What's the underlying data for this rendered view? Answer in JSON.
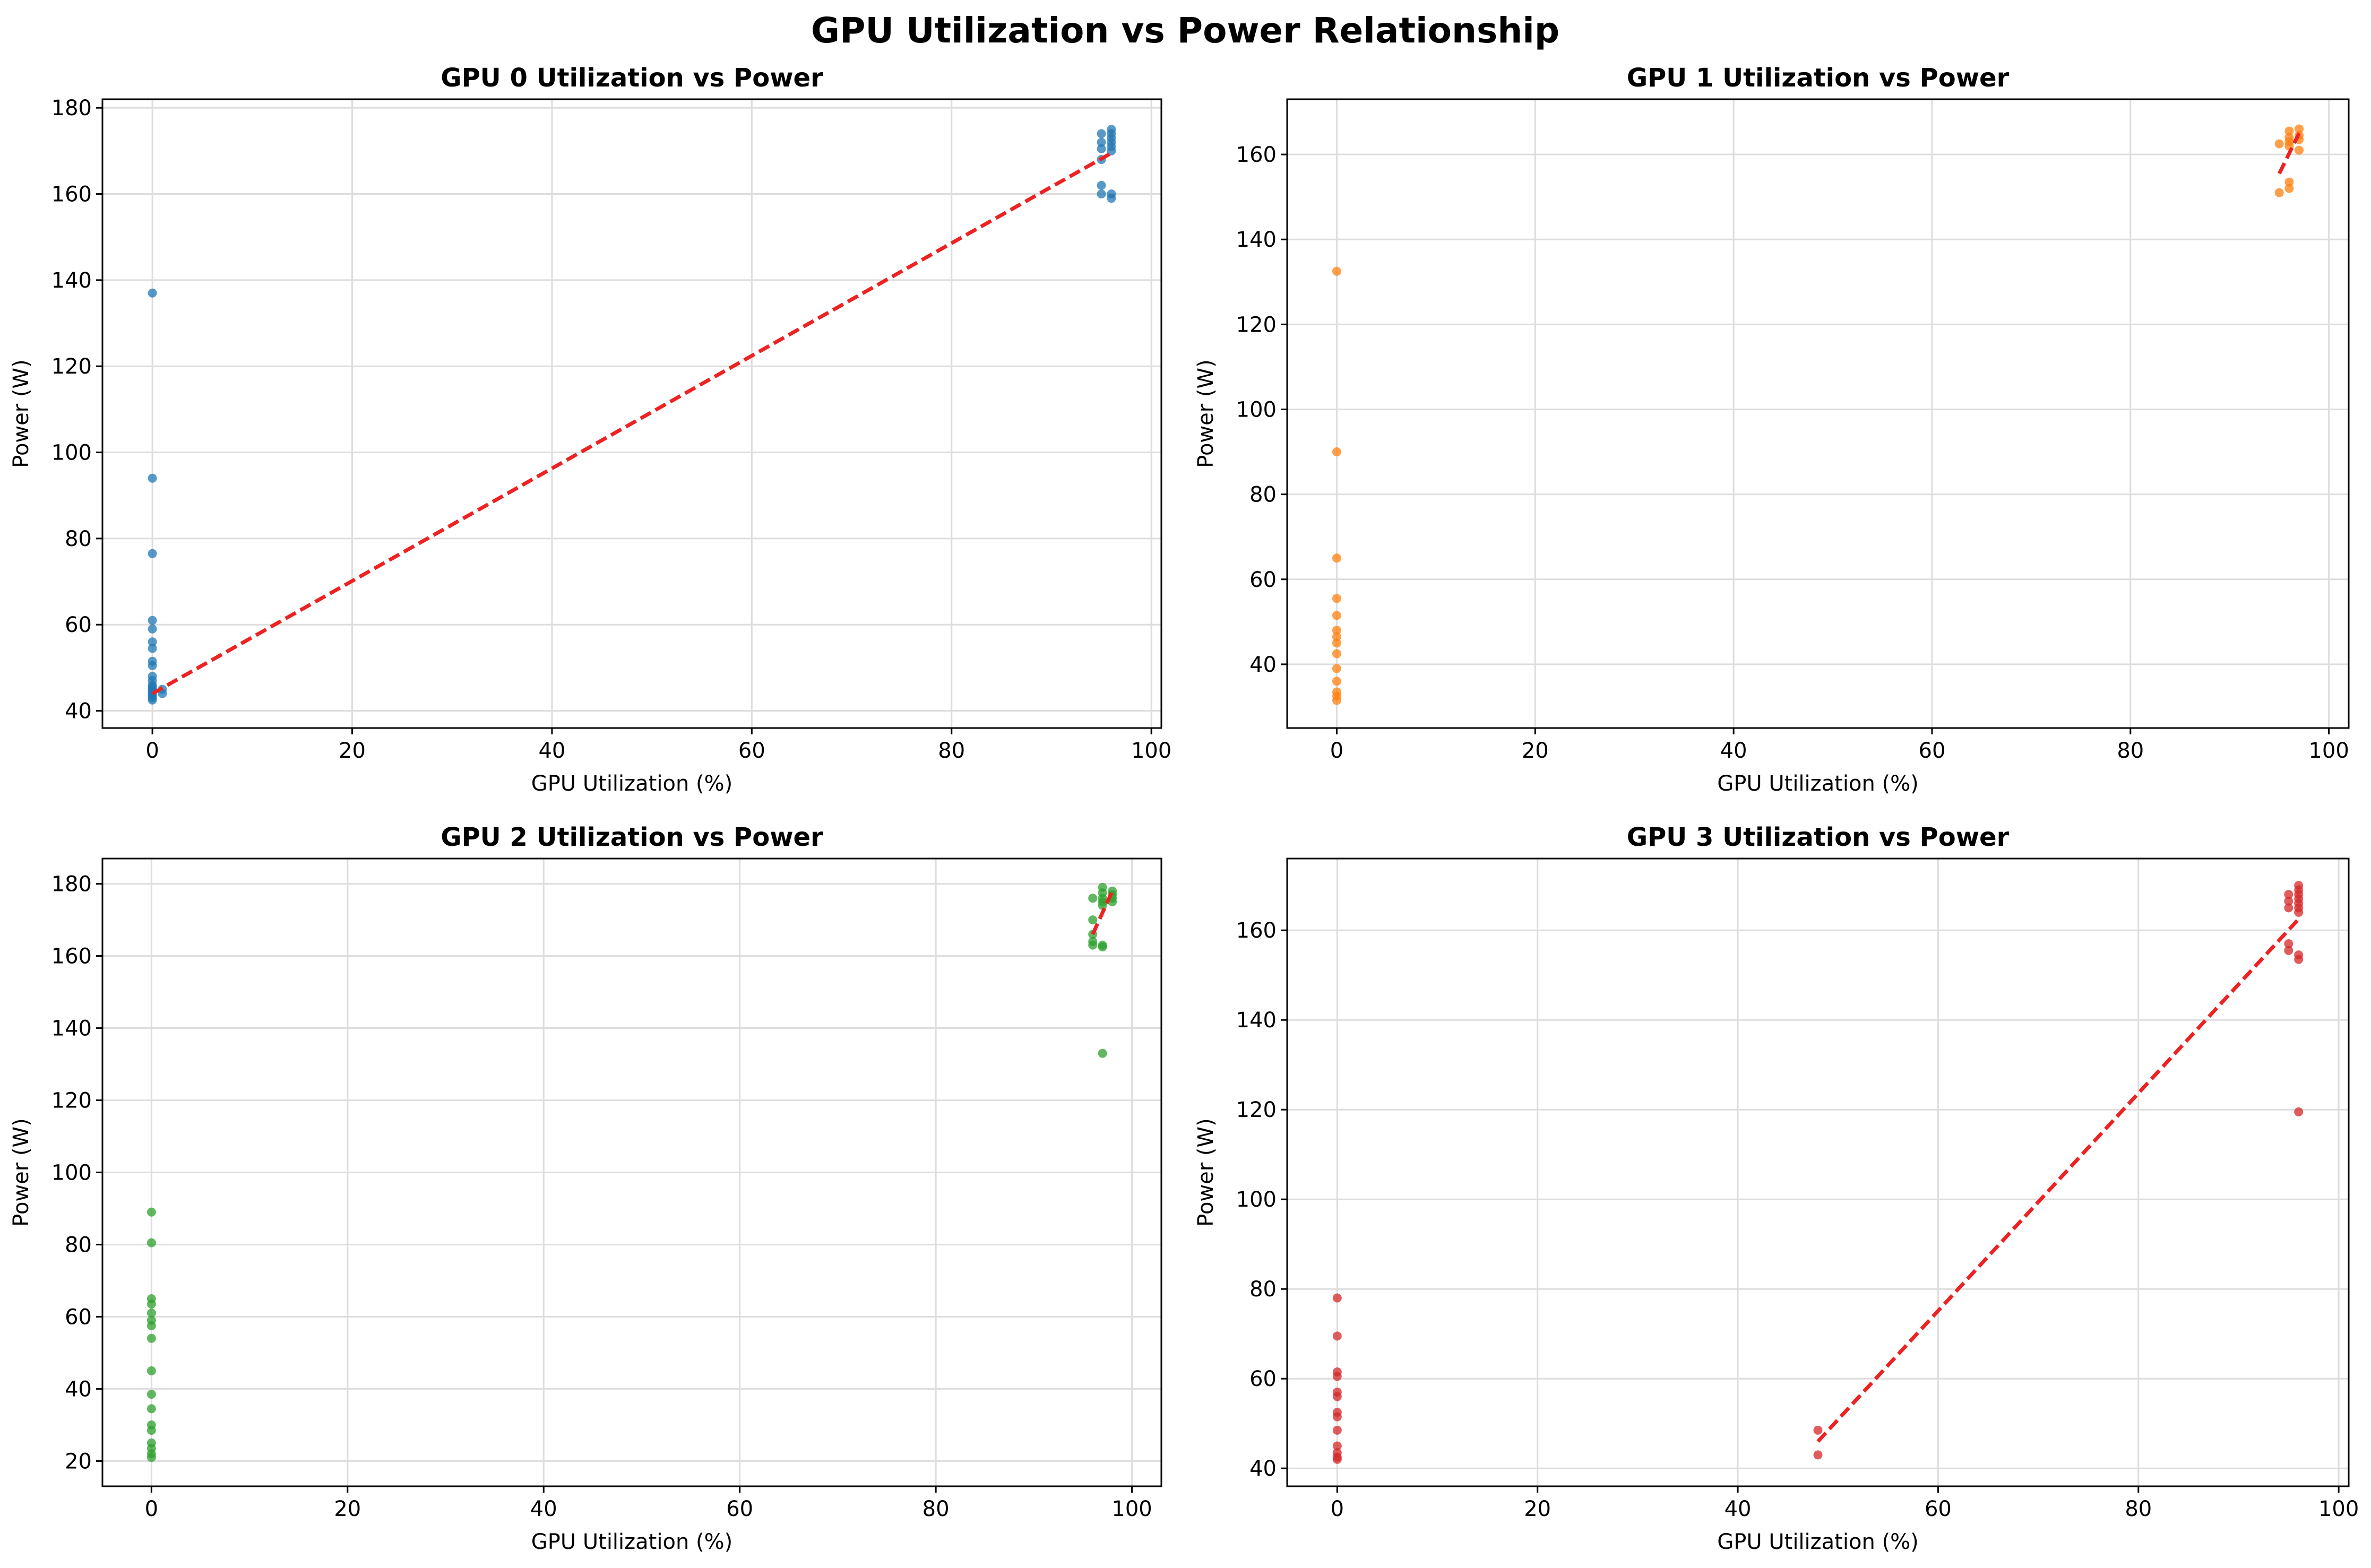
{
  "figure": {
    "title": "GPU Utilization vs Power Relationship"
  },
  "colors": {
    "gpu0": "#1f77b4",
    "gpu1": "#ff7f0e",
    "gpu2": "#2ca02c",
    "gpu3": "#d62728",
    "trend": "#ee2222",
    "grid": "#dddddd"
  },
  "chart_data": [
    {
      "type": "scatter",
      "title": "GPU 0 Utilization vs Power",
      "xlabel": "GPU Utilization (%)",
      "ylabel": "Power (W)",
      "xlim": [
        -5,
        101
      ],
      "ylim": [
        36,
        182
      ],
      "xticks": [
        0,
        20,
        40,
        60,
        80,
        100
      ],
      "yticks": [
        40,
        60,
        80,
        100,
        120,
        140,
        160,
        180
      ],
      "grid": true,
      "color_key": "gpu0",
      "points": [
        [
          0,
          137
        ],
        [
          0,
          94
        ],
        [
          0,
          76.5
        ],
        [
          0,
          61
        ],
        [
          0,
          59
        ],
        [
          0,
          56
        ],
        [
          0,
          54.5
        ],
        [
          0,
          51.5
        ],
        [
          0,
          50.5
        ],
        [
          0,
          48
        ],
        [
          0,
          47
        ],
        [
          0,
          46
        ],
        [
          0,
          45.5
        ],
        [
          0,
          45
        ],
        [
          0,
          44.5
        ],
        [
          0,
          44
        ],
        [
          0,
          43.5
        ],
        [
          0,
          43
        ],
        [
          0,
          42.5
        ],
        [
          1,
          45
        ],
        [
          1,
          44
        ],
        [
          95,
          174
        ],
        [
          95,
          172
        ],
        [
          95,
          170.5
        ],
        [
          95,
          168
        ],
        [
          95,
          162
        ],
        [
          95,
          160
        ],
        [
          96,
          175
        ],
        [
          96,
          174
        ],
        [
          96,
          173
        ],
        [
          96,
          172
        ],
        [
          96,
          171
        ],
        [
          96,
          170
        ],
        [
          96,
          160
        ],
        [
          96,
          159
        ]
      ],
      "trend": [
        [
          0,
          44
        ],
        [
          96,
          169.5
        ]
      ]
    },
    {
      "type": "scatter",
      "title": "GPU 1 Utilization vs Power",
      "xlabel": "GPU Utilization (%)",
      "ylabel": "Power (W)",
      "xlim": [
        -5,
        102
      ],
      "ylim": [
        25,
        173
      ],
      "xticks": [
        0,
        20,
        40,
        60,
        80,
        100
      ],
      "yticks": [
        40,
        60,
        80,
        100,
        120,
        140,
        160
      ],
      "grid": true,
      "color_key": "gpu1",
      "points": [
        [
          0,
          132.5
        ],
        [
          0,
          90
        ],
        [
          0,
          65
        ],
        [
          0,
          55.5
        ],
        [
          0,
          51.5
        ],
        [
          0,
          48
        ],
        [
          0,
          46.5
        ],
        [
          0,
          45
        ],
        [
          0,
          42.5
        ],
        [
          0,
          39
        ],
        [
          0,
          36
        ],
        [
          0,
          33.5
        ],
        [
          0,
          32.5
        ],
        [
          0,
          31.5
        ],
        [
          95,
          162.5
        ],
        [
          95,
          151
        ],
        [
          96,
          165.5
        ],
        [
          96,
          164
        ],
        [
          96,
          163
        ],
        [
          96,
          162
        ],
        [
          96,
          153.5
        ],
        [
          96,
          152
        ],
        [
          97,
          166
        ],
        [
          97,
          164.5
        ],
        [
          97,
          163.5
        ],
        [
          97,
          161
        ]
      ],
      "trend": [
        [
          95,
          155.5
        ],
        [
          97,
          165
        ]
      ]
    },
    {
      "type": "scatter",
      "title": "GPU 2 Utilization vs Power",
      "xlabel": "GPU Utilization (%)",
      "ylabel": "Power (W)",
      "xlim": [
        -5,
        103
      ],
      "ylim": [
        13,
        187
      ],
      "xticks": [
        0,
        20,
        40,
        60,
        80,
        100
      ],
      "yticks": [
        20,
        40,
        60,
        80,
        100,
        120,
        140,
        160,
        180
      ],
      "grid": true,
      "color_key": "gpu2",
      "points": [
        [
          0,
          89
        ],
        [
          0,
          80.5
        ],
        [
          0,
          65
        ],
        [
          0,
          63.5
        ],
        [
          0,
          61
        ],
        [
          0,
          59
        ],
        [
          0,
          57.5
        ],
        [
          0,
          54
        ],
        [
          0,
          45
        ],
        [
          0,
          38.5
        ],
        [
          0,
          34.5
        ],
        [
          0,
          30
        ],
        [
          0,
          28.5
        ],
        [
          0,
          25
        ],
        [
          0,
          23.5
        ],
        [
          0,
          22
        ],
        [
          0,
          21
        ],
        [
          96,
          176
        ],
        [
          96,
          170
        ],
        [
          96,
          166
        ],
        [
          96,
          164
        ],
        [
          96,
          163
        ],
        [
          97,
          179
        ],
        [
          97,
          177.5
        ],
        [
          97,
          176
        ],
        [
          97,
          175
        ],
        [
          97,
          174
        ],
        [
          97,
          163
        ],
        [
          97,
          162.5
        ],
        [
          97,
          133
        ],
        [
          98,
          178
        ],
        [
          98,
          177
        ],
        [
          98,
          176
        ],
        [
          98,
          175
        ]
      ],
      "trend": [
        [
          96,
          166
        ],
        [
          98,
          178
        ]
      ]
    },
    {
      "type": "scatter",
      "title": "GPU 3 Utilization vs Power",
      "xlabel": "GPU Utilization (%)",
      "ylabel": "Power (W)",
      "xlim": [
        -5,
        101
      ],
      "ylim": [
        36,
        176
      ],
      "xticks": [
        0,
        20,
        40,
        60,
        80,
        100
      ],
      "yticks": [
        40,
        60,
        80,
        100,
        120,
        140,
        160
      ],
      "grid": true,
      "color_key": "gpu3",
      "points": [
        [
          0,
          78
        ],
        [
          0,
          69.5
        ],
        [
          0,
          61.5
        ],
        [
          0,
          60.5
        ],
        [
          0,
          57
        ],
        [
          0,
          56
        ],
        [
          0,
          52.5
        ],
        [
          0,
          51.5
        ],
        [
          0,
          48.5
        ],
        [
          0,
          45
        ],
        [
          0,
          43.5
        ],
        [
          0,
          42.5
        ],
        [
          0,
          42
        ],
        [
          48,
          48.5
        ],
        [
          48,
          43
        ],
        [
          95,
          168
        ],
        [
          95,
          166.5
        ],
        [
          95,
          165
        ],
        [
          95,
          157
        ],
        [
          95,
          155.5
        ],
        [
          96,
          170
        ],
        [
          96,
          169
        ],
        [
          96,
          168
        ],
        [
          96,
          167
        ],
        [
          96,
          166
        ],
        [
          96,
          165
        ],
        [
          96,
          164
        ],
        [
          96,
          154.5
        ],
        [
          96,
          153.5
        ],
        [
          96,
          119.5
        ]
      ],
      "trend": [
        [
          48,
          46
        ],
        [
          96,
          162.5
        ]
      ]
    }
  ]
}
